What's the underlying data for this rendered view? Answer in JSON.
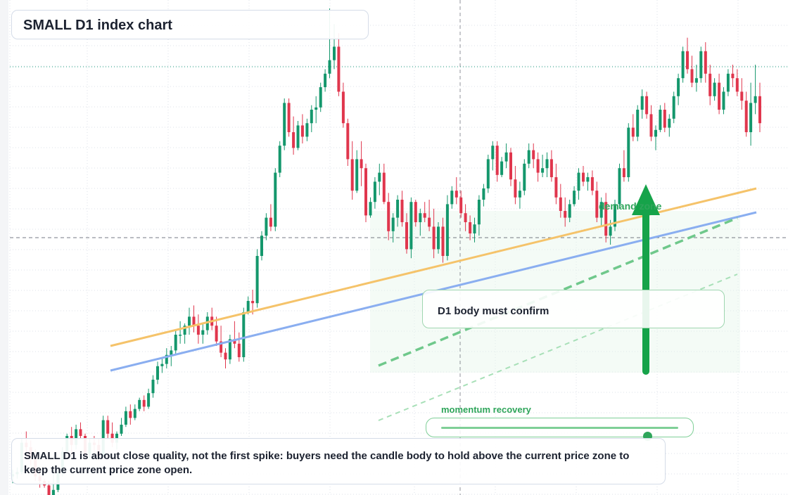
{
  "title": "SMALL D1 index chart",
  "confirm_label": "D1 body must confirm",
  "zone_label": "demand zone",
  "momentum": {
    "label": "momentum recovery",
    "level": 0.87
  },
  "note": "SMALL D1 is about close quality, not the first spike: buyers need the candle body to hold above the current price zone to keep the current price zone open.",
  "colors": {
    "up": "#14976c",
    "down": "#e0364d",
    "accent": "#16a34a",
    "orange_line": "#f5c36a",
    "blue_line": "#8aaef0",
    "grid": "#dde1e8"
  },
  "chart_data": {
    "type": "candlestick",
    "timeframe": "D1",
    "levels": {
      "dotted_teal": 1.82,
      "current_price_dashed": 1.0
    },
    "candles": [
      [
        0.07,
        0.1,
        0.04,
        0.08
      ],
      [
        0.08,
        0.11,
        0.06,
        0.09
      ],
      [
        0.09,
        0.24,
        0.08,
        0.22
      ],
      [
        0.22,
        0.27,
        0.18,
        0.2
      ],
      [
        0.2,
        0.23,
        0.12,
        0.16
      ],
      [
        0.16,
        0.19,
        0.05,
        0.07
      ],
      [
        0.07,
        0.09,
        0.02,
        0.05
      ],
      [
        0.05,
        0.06,
        0.02,
        0.03
      ],
      [
        0.03,
        0.05,
        -0.04,
        -0.03
      ],
      [
        -0.03,
        0.1,
        -0.07,
        0.01
      ],
      [
        0.01,
        0.1,
        0.0,
        0.09
      ],
      [
        0.09,
        0.2,
        0.07,
        0.18
      ],
      [
        0.18,
        0.26,
        0.16,
        0.25
      ],
      [
        0.25,
        0.29,
        0.16,
        0.21
      ],
      [
        0.21,
        0.3,
        0.19,
        0.28
      ],
      [
        0.28,
        0.31,
        0.24,
        0.25
      ],
      [
        0.25,
        0.26,
        0.15,
        0.17
      ],
      [
        0.17,
        0.24,
        0.15,
        0.22
      ],
      [
        0.22,
        0.25,
        0.17,
        0.21
      ],
      [
        0.21,
        0.24,
        0.14,
        0.16
      ],
      [
        0.16,
        0.34,
        0.15,
        0.32
      ],
      [
        0.32,
        0.34,
        0.24,
        0.26
      ],
      [
        0.26,
        0.31,
        0.2,
        0.22
      ],
      [
        0.22,
        0.27,
        0.19,
        0.26
      ],
      [
        0.26,
        0.33,
        0.25,
        0.3
      ],
      [
        0.3,
        0.38,
        0.29,
        0.36
      ],
      [
        0.36,
        0.39,
        0.3,
        0.33
      ],
      [
        0.33,
        0.39,
        0.32,
        0.37
      ],
      [
        0.37,
        0.42,
        0.36,
        0.41
      ],
      [
        0.41,
        0.43,
        0.36,
        0.38
      ],
      [
        0.38,
        0.46,
        0.37,
        0.44
      ],
      [
        0.44,
        0.52,
        0.42,
        0.5
      ],
      [
        0.5,
        0.58,
        0.48,
        0.56
      ],
      [
        0.56,
        0.6,
        0.53,
        0.57
      ],
      [
        0.57,
        0.64,
        0.55,
        0.61
      ],
      [
        0.61,
        0.65,
        0.56,
        0.63
      ],
      [
        0.63,
        0.72,
        0.61,
        0.7
      ],
      [
        0.7,
        0.76,
        0.66,
        0.7
      ],
      [
        0.7,
        0.75,
        0.66,
        0.74
      ],
      [
        0.74,
        0.82,
        0.7,
        0.78
      ],
      [
        0.78,
        0.83,
        0.71,
        0.74
      ],
      [
        0.74,
        0.79,
        0.66,
        0.7
      ],
      [
        0.7,
        0.75,
        0.66,
        0.72
      ],
      [
        0.72,
        0.8,
        0.7,
        0.78
      ],
      [
        0.78,
        0.82,
        0.72,
        0.74
      ],
      [
        0.74,
        0.78,
        0.65,
        0.67
      ],
      [
        0.67,
        0.74,
        0.6,
        0.62
      ],
      [
        0.62,
        0.64,
        0.55,
        0.59
      ],
      [
        0.59,
        0.7,
        0.57,
        0.68
      ],
      [
        0.68,
        0.76,
        0.64,
        0.66
      ],
      [
        0.66,
        0.71,
        0.58,
        0.6
      ],
      [
        0.6,
        0.82,
        0.58,
        0.8
      ],
      [
        0.8,
        0.87,
        0.79,
        0.85
      ],
      [
        0.85,
        0.9,
        0.79,
        0.84
      ],
      [
        0.84,
        1.08,
        0.82,
        1.05
      ],
      [
        1.05,
        1.16,
        1.03,
        1.14
      ],
      [
        1.14,
        1.24,
        1.12,
        1.22
      ],
      [
        1.22,
        1.28,
        1.16,
        1.18
      ],
      [
        1.18,
        1.44,
        1.16,
        1.42
      ],
      [
        1.42,
        1.56,
        1.4,
        1.54
      ],
      [
        1.54,
        1.75,
        1.52,
        1.73
      ],
      [
        1.73,
        1.75,
        1.58,
        1.6
      ],
      [
        1.6,
        1.67,
        1.5,
        1.53
      ],
      [
        1.53,
        1.65,
        1.52,
        1.63
      ],
      [
        1.63,
        1.68,
        1.55,
        1.58
      ],
      [
        1.58,
        1.66,
        1.56,
        1.64
      ],
      [
        1.64,
        1.72,
        1.6,
        1.7
      ],
      [
        1.7,
        1.76,
        1.64,
        1.71
      ],
      [
        1.71,
        1.82,
        1.69,
        1.8
      ],
      [
        1.8,
        1.88,
        1.78,
        1.86
      ],
      [
        1.86,
        2.15,
        1.84,
        1.92
      ],
      [
        1.92,
        2.08,
        1.88,
        1.98
      ],
      [
        1.98,
        2.04,
        1.76,
        1.78
      ],
      [
        1.78,
        1.82,
        1.62,
        1.64
      ],
      [
        1.64,
        1.66,
        1.45,
        1.48
      ],
      [
        1.48,
        1.56,
        1.3,
        1.34
      ],
      [
        1.34,
        1.52,
        1.33,
        1.48
      ],
      [
        1.48,
        1.56,
        1.36,
        1.44
      ],
      [
        1.44,
        1.46,
        1.2,
        1.23
      ],
      [
        1.23,
        1.31,
        1.22,
        1.29
      ],
      [
        1.29,
        1.4,
        1.26,
        1.38
      ],
      [
        1.38,
        1.46,
        1.32,
        1.42
      ],
      [
        1.42,
        1.46,
        1.28,
        1.29
      ],
      [
        1.29,
        1.33,
        1.12,
        1.16
      ],
      [
        1.16,
        1.24,
        1.11,
        1.22
      ],
      [
        1.22,
        1.32,
        1.18,
        1.3
      ],
      [
        1.3,
        1.34,
        1.18,
        1.2
      ],
      [
        1.2,
        1.24,
        1.06,
        1.08
      ],
      [
        1.08,
        1.31,
        1.04,
        1.29
      ],
      [
        1.29,
        1.3,
        1.18,
        1.2
      ],
      [
        1.2,
        1.26,
        1.14,
        1.24
      ],
      [
        1.24,
        1.29,
        1.2,
        1.22
      ],
      [
        1.22,
        1.3,
        1.16,
        1.18
      ],
      [
        1.18,
        1.26,
        1.04,
        1.08
      ],
      [
        1.08,
        1.2,
        1.06,
        1.18
      ],
      [
        1.18,
        1.22,
        1.02,
        1.05
      ],
      [
        1.05,
        1.32,
        1.03,
        1.28
      ],
      [
        1.28,
        1.36,
        1.26,
        1.34
      ],
      [
        1.34,
        1.4,
        1.28,
        1.31
      ],
      [
        1.31,
        1.34,
        1.22,
        1.24
      ],
      [
        1.24,
        1.28,
        1.16,
        1.2
      ],
      [
        1.2,
        1.23,
        1.12,
        1.15
      ],
      [
        1.15,
        1.22,
        1.11,
        1.19
      ],
      [
        1.19,
        1.32,
        1.14,
        1.3
      ],
      [
        1.3,
        1.37,
        1.27,
        1.35
      ],
      [
        1.35,
        1.5,
        1.33,
        1.48
      ],
      [
        1.48,
        1.56,
        1.43,
        1.54
      ],
      [
        1.54,
        1.56,
        1.38,
        1.41
      ],
      [
        1.41,
        1.49,
        1.4,
        1.47
      ],
      [
        1.47,
        1.55,
        1.44,
        1.51
      ],
      [
        1.51,
        1.53,
        1.36,
        1.39
      ],
      [
        1.39,
        1.45,
        1.28,
        1.31
      ],
      [
        1.31,
        1.38,
        1.26,
        1.34
      ],
      [
        1.34,
        1.48,
        1.32,
        1.46
      ],
      [
        1.46,
        1.55,
        1.44,
        1.52
      ],
      [
        1.52,
        1.55,
        1.44,
        1.48
      ],
      [
        1.48,
        1.51,
        1.38,
        1.42
      ],
      [
        1.42,
        1.5,
        1.4,
        1.44
      ],
      [
        1.44,
        1.51,
        1.4,
        1.48
      ],
      [
        1.48,
        1.52,
        1.38,
        1.4
      ],
      [
        1.4,
        1.46,
        1.28,
        1.31
      ],
      [
        1.31,
        1.37,
        1.22,
        1.25
      ],
      [
        1.25,
        1.31,
        1.18,
        1.22
      ],
      [
        1.22,
        1.3,
        1.2,
        1.28
      ],
      [
        1.28,
        1.36,
        1.27,
        1.34
      ],
      [
        1.34,
        1.44,
        1.3,
        1.42
      ],
      [
        1.42,
        1.45,
        1.36,
        1.38
      ],
      [
        1.38,
        1.42,
        1.34,
        1.4
      ],
      [
        1.4,
        1.43,
        1.32,
        1.34
      ],
      [
        1.34,
        1.38,
        1.2,
        1.22
      ],
      [
        1.22,
        1.31,
        1.18,
        1.29
      ],
      [
        1.29,
        1.33,
        1.11,
        1.14
      ],
      [
        1.14,
        1.21,
        1.1,
        1.18
      ],
      [
        1.18,
        1.3,
        1.16,
        1.28
      ],
      [
        1.28,
        1.46,
        1.26,
        1.44
      ],
      [
        1.44,
        1.52,
        1.38,
        1.4
      ],
      [
        1.4,
        1.64,
        1.38,
        1.62
      ],
      [
        1.62,
        1.68,
        1.56,
        1.58
      ],
      [
        1.58,
        1.72,
        1.56,
        1.7
      ],
      [
        1.7,
        1.79,
        1.66,
        1.76
      ],
      [
        1.76,
        1.78,
        1.66,
        1.68
      ],
      [
        1.68,
        1.72,
        1.56,
        1.58
      ],
      [
        1.58,
        1.63,
        1.52,
        1.61
      ],
      [
        1.61,
        1.72,
        1.6,
        1.7
      ],
      [
        1.7,
        1.73,
        1.6,
        1.62
      ],
      [
        1.62,
        1.68,
        1.58,
        1.66
      ],
      [
        1.66,
        1.78,
        1.64,
        1.76
      ],
      [
        1.76,
        1.86,
        1.72,
        1.84
      ],
      [
        1.84,
        1.98,
        1.82,
        1.96
      ],
      [
        1.96,
        2.02,
        1.86,
        1.88
      ],
      [
        1.88,
        1.94,
        1.8,
        1.82
      ],
      [
        1.82,
        1.9,
        1.78,
        1.84
      ],
      [
        1.84,
        1.98,
        1.82,
        1.96
      ],
      [
        1.96,
        2.0,
        1.82,
        1.86
      ],
      [
        1.86,
        1.9,
        1.72,
        1.76
      ],
      [
        1.76,
        1.84,
        1.74,
        1.82
      ],
      [
        1.82,
        1.86,
        1.68,
        1.7
      ],
      [
        1.7,
        1.8,
        1.68,
        1.78
      ],
      [
        1.78,
        1.88,
        1.76,
        1.86
      ],
      [
        1.86,
        1.9,
        1.8,
        1.84
      ],
      [
        1.84,
        1.88,
        1.76,
        1.78
      ],
      [
        1.78,
        1.84,
        1.7,
        1.74
      ],
      [
        1.74,
        1.78,
        1.58,
        1.6
      ],
      [
        1.6,
        1.82,
        1.54,
        1.73
      ],
      [
        1.73,
        1.9,
        1.68,
        1.76
      ],
      [
        1.76,
        1.82,
        1.6,
        1.64
      ]
    ]
  }
}
